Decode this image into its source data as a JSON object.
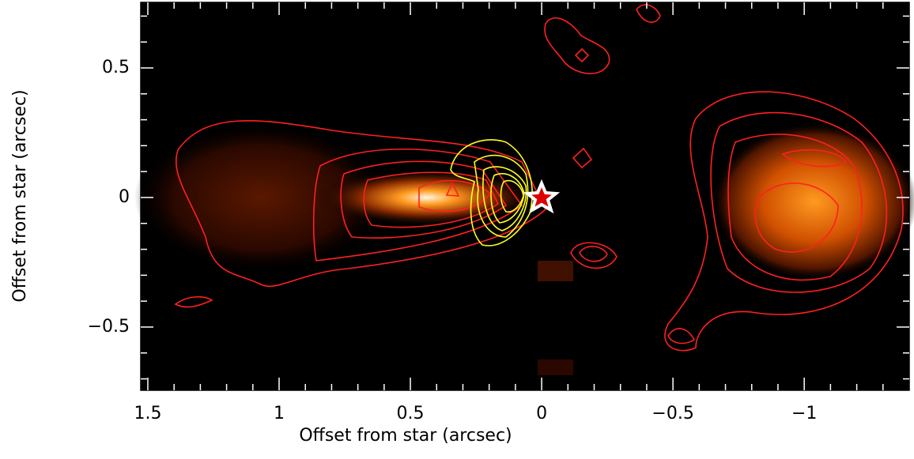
{
  "chart_data": {
    "type": "image",
    "xlabel": "Offset from star (arcsec)",
    "ylabel": "Offset from star (arcsec)",
    "xlim": [
      1.527,
      -1.4
    ],
    "ylim": [
      -0.744,
      0.753
    ],
    "xticks": [
      1.5,
      1,
      0.5,
      0,
      {
        "value": -0.5,
        "label": "−0.5"
      },
      {
        "value": -1,
        "label": "−1"
      }
    ],
    "yticks": [
      {
        "value": -0.5,
        "label": "−0.5"
      },
      0,
      0.5
    ],
    "xminorticks": [
      1.4,
      1.3,
      1.2,
      1.1,
      0.9,
      0.8,
      0.7,
      0.6,
      0.4,
      0.3,
      0.2,
      0.1,
      -0.1,
      -0.2,
      -0.3,
      -0.4,
      -0.6,
      -0.7,
      -0.8,
      -0.9,
      -1.1,
      -1.2,
      -1.3
    ],
    "yminorticks": [
      -0.7,
      -0.6,
      -0.4,
      -0.3,
      -0.2,
      -0.1,
      0.1,
      0.2,
      0.3,
      0.4,
      0.6,
      0.7
    ]
  }
}
